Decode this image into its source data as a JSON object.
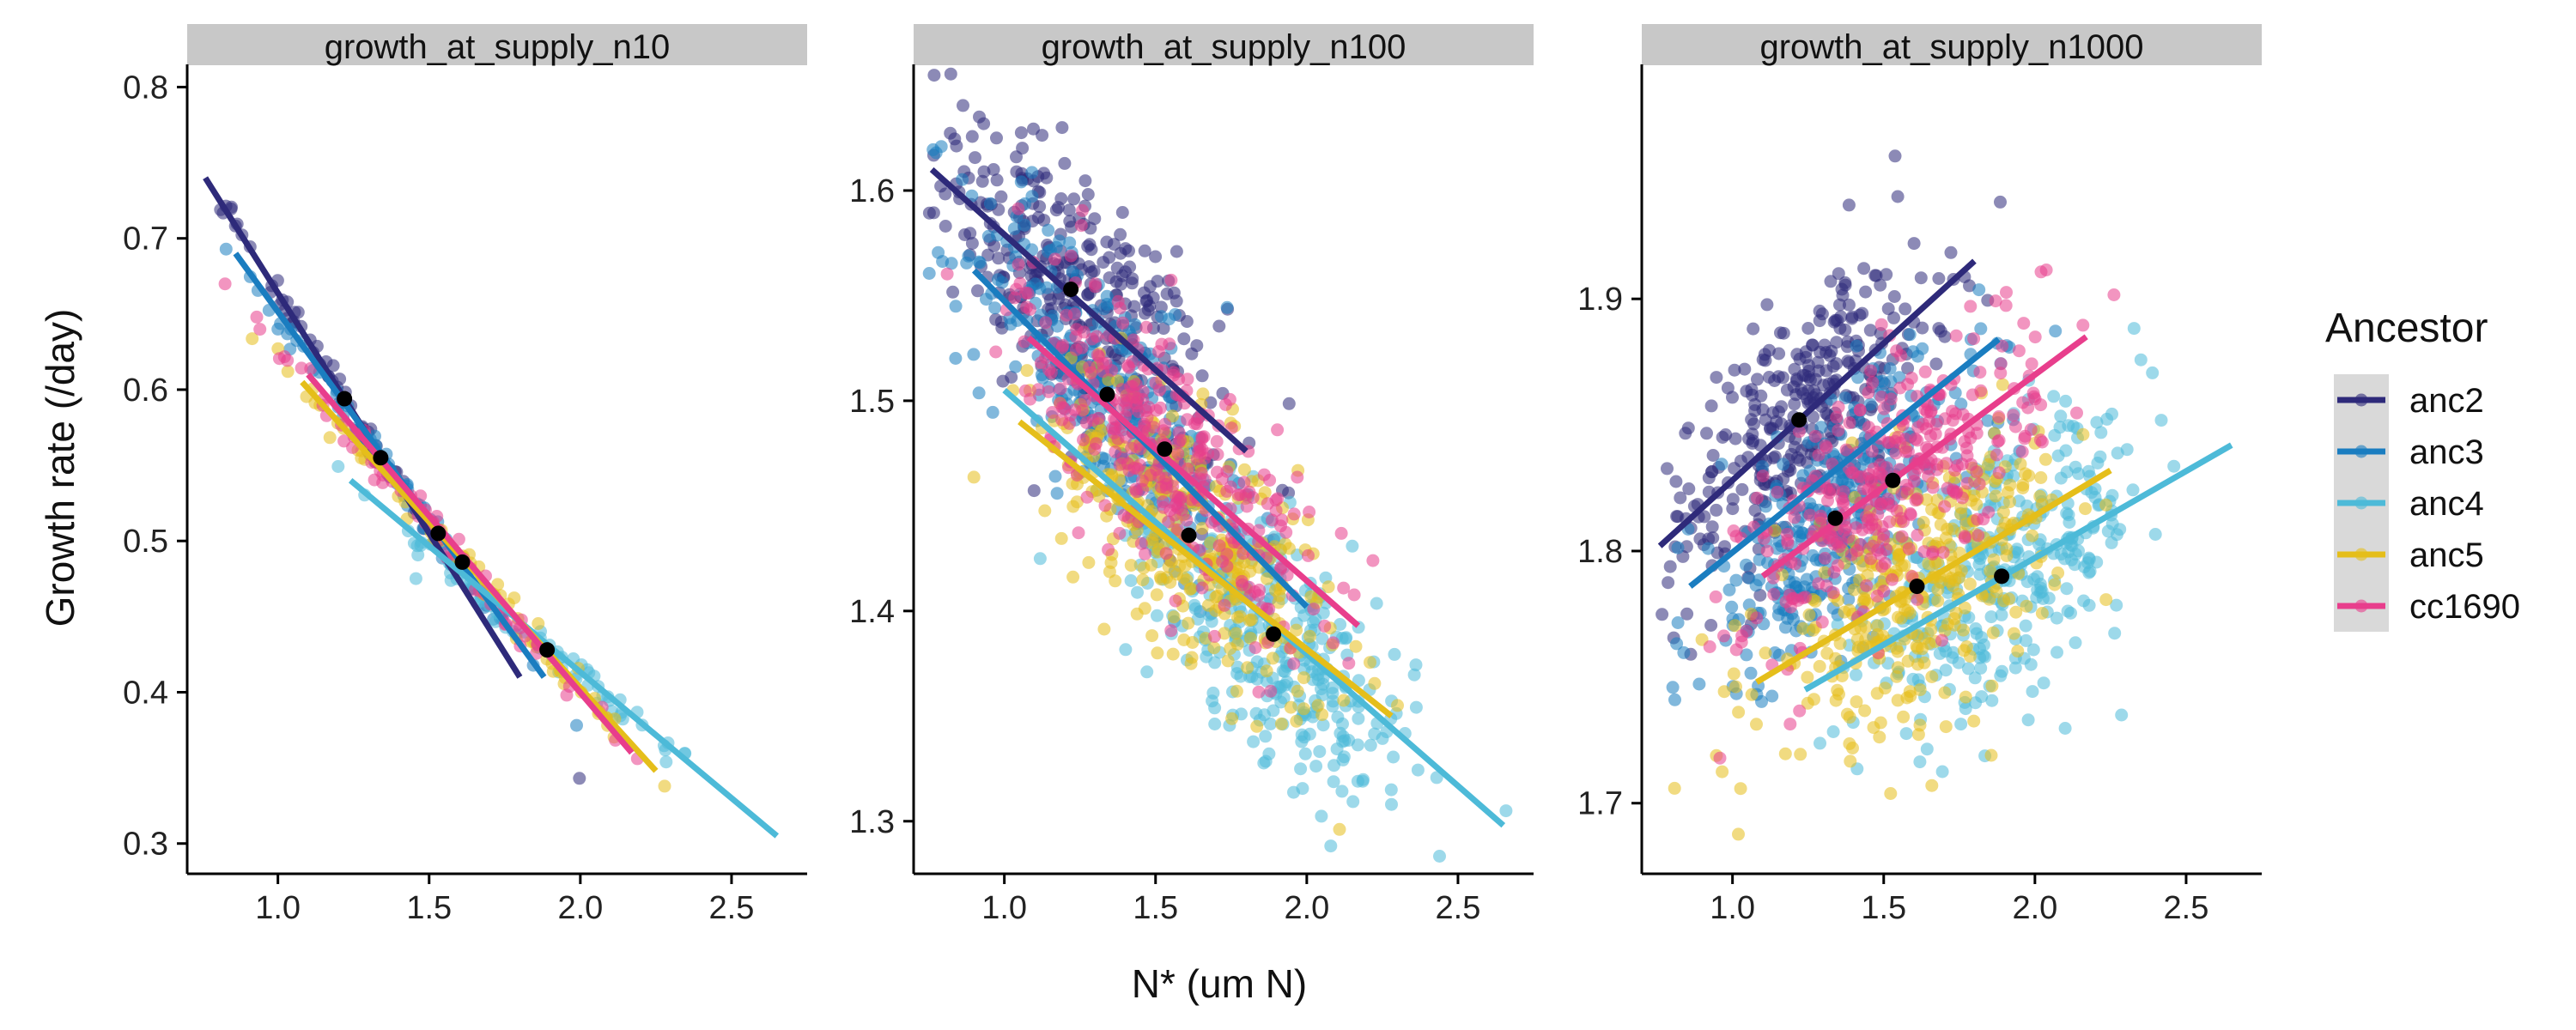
{
  "chart_data": {
    "type": "scatter",
    "facets": [
      {
        "title": "growth_at_supply_n10",
        "xlim": [
          0.7,
          2.75
        ],
        "ylim": [
          0.28,
          0.815
        ],
        "xticks": [
          1.0,
          1.5,
          2.0,
          2.5
        ],
        "yticks": [
          0.3,
          0.4,
          0.5,
          0.6,
          0.7,
          0.8
        ],
        "lines": [
          {
            "ancestor": "anc2",
            "x": [
              0.76,
              1.8
            ],
            "y": [
              0.74,
              0.41
            ]
          },
          {
            "ancestor": "anc3",
            "x": [
              0.86,
              1.88
            ],
            "y": [
              0.69,
              0.41
            ]
          },
          {
            "ancestor": "anc4",
            "x": [
              1.24,
              2.65
            ],
            "y": [
              0.54,
              0.305
            ]
          },
          {
            "ancestor": "anc5",
            "x": [
              1.08,
              2.25
            ],
            "y": [
              0.605,
              0.348
            ]
          },
          {
            "ancestor": "cc1690",
            "x": [
              1.1,
              2.17
            ],
            "y": [
              0.61,
              0.36
            ]
          }
        ],
        "means": [
          {
            "ancestor": "anc2",
            "x": 1.22,
            "y": 0.594
          },
          {
            "ancestor": "anc3",
            "x": 1.34,
            "y": 0.555
          },
          {
            "ancestor": "cc1690",
            "x": 1.53,
            "y": 0.505
          },
          {
            "ancestor": "anc5",
            "x": 1.61,
            "y": 0.486
          },
          {
            "ancestor": "anc4",
            "x": 1.89,
            "y": 0.428
          }
        ]
      },
      {
        "title": "growth_at_supply_n100",
        "xlim": [
          0.7,
          2.75
        ],
        "ylim": [
          1.275,
          1.66
        ],
        "xticks": [
          1.0,
          1.5,
          2.0,
          2.5
        ],
        "yticks": [
          1.3,
          1.4,
          1.5,
          1.6
        ],
        "lines": [
          {
            "ancestor": "anc2",
            "x": [
              0.76,
              1.8
            ],
            "y": [
              1.61,
              1.476
            ]
          },
          {
            "ancestor": "anc3",
            "x": [
              0.9,
              2.0
            ],
            "y": [
              1.562,
              1.402
            ]
          },
          {
            "ancestor": "anc4",
            "x": [
              1.0,
              2.65
            ],
            "y": [
              1.505,
              1.298
            ]
          },
          {
            "ancestor": "anc5",
            "x": [
              1.05,
              2.28
            ],
            "y": [
              1.49,
              1.35
            ]
          },
          {
            "ancestor": "cc1690",
            "x": [
              1.08,
              2.17
            ],
            "y": [
              1.53,
              1.393
            ]
          }
        ],
        "means": [
          {
            "ancestor": "anc2",
            "x": 1.22,
            "y": 1.553
          },
          {
            "ancestor": "anc3",
            "x": 1.34,
            "y": 1.503
          },
          {
            "ancestor": "cc1690",
            "x": 1.53,
            "y": 1.477
          },
          {
            "ancestor": "anc5",
            "x": 1.61,
            "y": 1.436
          },
          {
            "ancestor": "anc4",
            "x": 1.89,
            "y": 1.389
          }
        ]
      },
      {
        "title": "growth_at_supply_n1000",
        "xlim": [
          0.7,
          2.75
        ],
        "ylim": [
          1.672,
          1.993
        ],
        "xticks": [
          1.0,
          1.5,
          2.0,
          2.5
        ],
        "yticks": [
          1.7,
          1.8,
          1.9
        ],
        "lines": [
          {
            "ancestor": "anc2",
            "x": [
              0.76,
              1.8
            ],
            "y": [
              1.802,
              1.915
            ]
          },
          {
            "ancestor": "anc3",
            "x": [
              0.86,
              1.88
            ],
            "y": [
              1.786,
              1.884
            ]
          },
          {
            "ancestor": "anc4",
            "x": [
              1.24,
              2.65
            ],
            "y": [
              1.745,
              1.842
            ]
          },
          {
            "ancestor": "anc5",
            "x": [
              1.08,
              2.25
            ],
            "y": [
              1.748,
              1.832
            ]
          },
          {
            "ancestor": "cc1690",
            "x": [
              1.1,
              2.17
            ],
            "y": [
              1.79,
              1.885
            ]
          }
        ],
        "means": [
          {
            "ancestor": "anc2",
            "x": 1.22,
            "y": 1.852
          },
          {
            "ancestor": "anc3",
            "x": 1.34,
            "y": 1.813
          },
          {
            "ancestor": "cc1690",
            "x": 1.53,
            "y": 1.828
          },
          {
            "ancestor": "anc5",
            "x": 1.61,
            "y": 1.786
          },
          {
            "ancestor": "anc4",
            "x": 1.89,
            "y": 1.79
          }
        ]
      }
    ],
    "xlabel": "N* (um N)",
    "ylabel": "Growth rate (/day)",
    "legend": {
      "title": "Ancestor",
      "placement": "right",
      "entries": [
        {
          "name": "anc2",
          "color": "#2E2A7A"
        },
        {
          "name": "anc3",
          "color": "#1A7DC0"
        },
        {
          "name": "anc4",
          "color": "#4DBAD8"
        },
        {
          "name": "anc5",
          "color": "#E5BE1A"
        },
        {
          "name": "cc1690",
          "color": "#E83E8C"
        }
      ]
    },
    "grid": false
  }
}
